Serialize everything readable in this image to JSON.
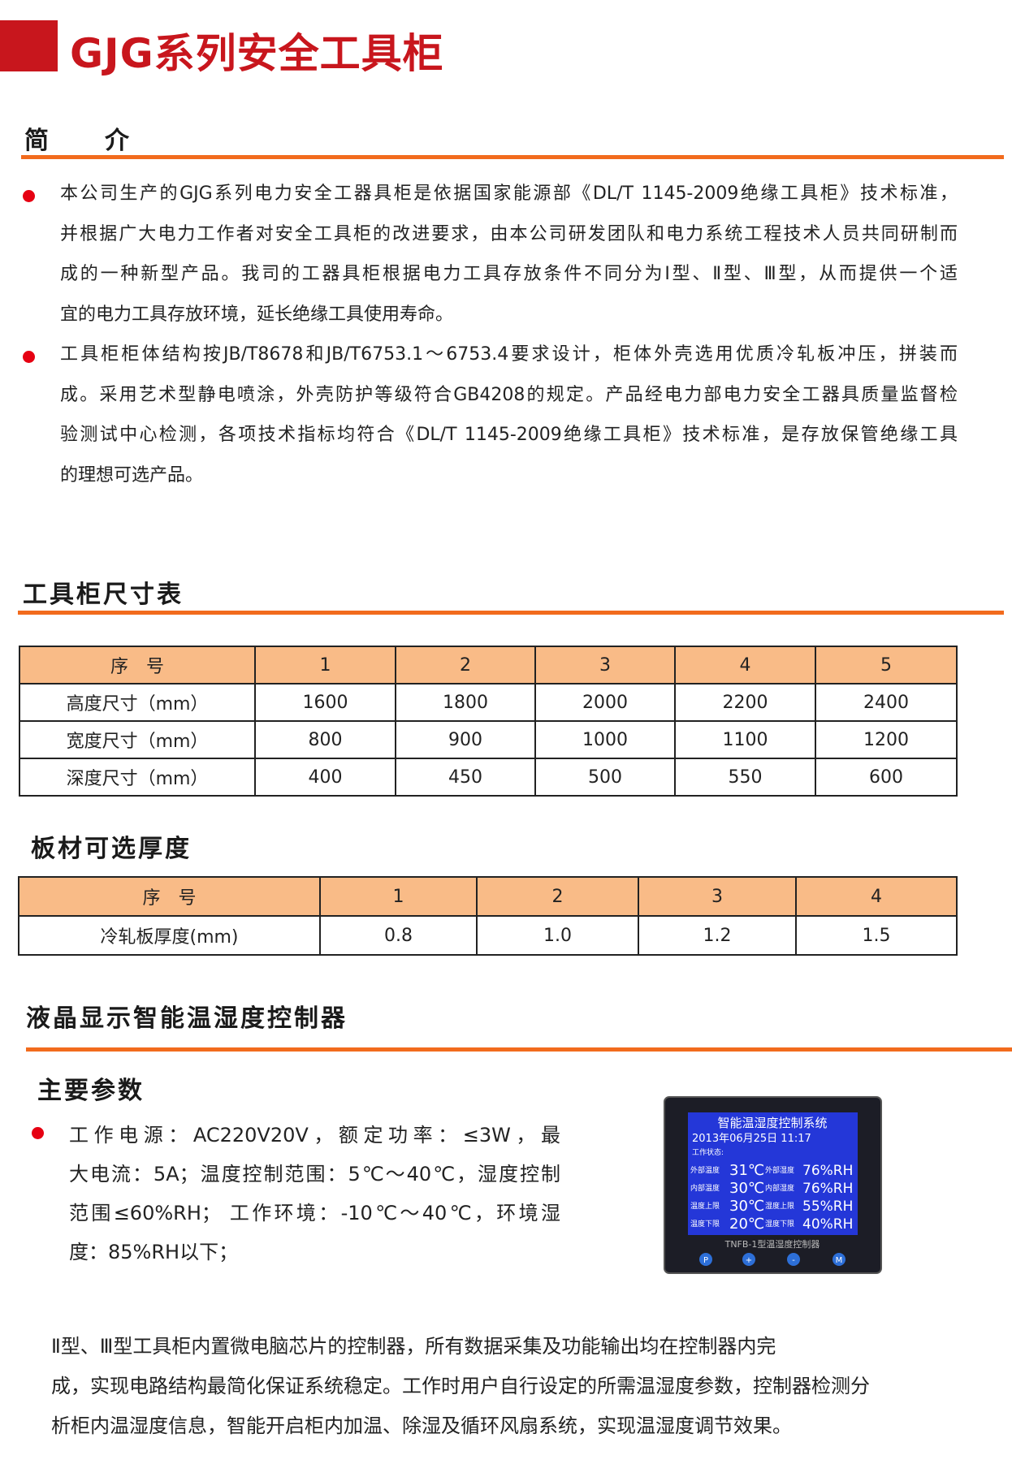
{
  "header": {
    "title": "GJG系列安全工具柜"
  },
  "intro": {
    "heading": "简　　介",
    "paragraphs": [
      [
        "本公司生产的GJG系列电力安全工器具柜是依据国家能源部《DL/T 1145-2009绝缘工具柜》技术标准，",
        "并根据广大电力工作者对安全工具柜的改进要求，由本公司研发团队和电力系统工程技术人员共同研制而",
        "成的一种新型产品。我司的工器具柜根据电力工具存放条件不同分为Ⅰ型、Ⅱ型、Ⅲ型，从而提供一个适",
        "宜的电力工具存放环境，延长绝缘工具使用寿命。"
      ],
      [
        "工具柜柜体结构按JB/T8678和JB/T6753.1～6753.4要求设计，柜体外壳选用优质冷轧板冲压，拼装而",
        "成。采用艺术型静电喷涂，外壳防护等级符合GB4208的规定。产品经电力部电力安全工器具质量监督检",
        "验测试中心检测，各项技术指标均符合《DL/T 1145-2009绝缘工具柜》技术标准，是存放保管绝缘工具",
        "的理想可选产品。"
      ]
    ]
  },
  "size_table": {
    "heading": "工具柜尺寸表",
    "header": [
      "序　号",
      "1",
      "2",
      "3",
      "4",
      "5"
    ],
    "rows": [
      [
        "高度尺寸（mm）",
        "1600",
        "1800",
        "2000",
        "2200",
        "2400"
      ],
      [
        "宽度尺寸（mm）",
        "800",
        "900",
        "1000",
        "1100",
        "1200"
      ],
      [
        "深度尺寸（mm）",
        "400",
        "450",
        "500",
        "550",
        "600"
      ]
    ]
  },
  "thickness_table": {
    "heading": "板材可选厚度",
    "header": [
      "序　号",
      "1",
      "2",
      "3",
      "4"
    ],
    "rows": [
      [
        "冷轧板厚度(mm)",
        "0.8",
        "1.0",
        "1.2",
        "1.5"
      ]
    ]
  },
  "controller": {
    "heading": "液晶显示智能温湿度控制器",
    "params_heading": "主要参数",
    "params_lines": [
      "工作电源：AC220V20V，额定功率：≤3W，最",
      "大电流：5A；温度控制范围：5℃～40℃，湿度控制",
      "范围≤60%RH；  工作环境：-10℃～40℃，环境湿",
      "度：85%RH以下；"
    ],
    "device": {
      "screen_title": "智能温湿度控制系统",
      "date": "2013年06月25日 11:17",
      "status": "工作状态:",
      "rows": [
        [
          "外部温度",
          "31℃",
          "外部湿度",
          "76%RH"
        ],
        [
          "内部温度",
          "30℃",
          "内部湿度",
          "76%RH"
        ],
        [
          "温度上限",
          "30℃",
          "湿度上限",
          "55%RH"
        ],
        [
          "温度下限",
          "20℃",
          "湿度下限",
          "40%RH"
        ]
      ],
      "model": "TNFB-1型温湿度控制器",
      "buttons": [
        "P",
        "+",
        "-",
        "M"
      ]
    },
    "description": [
      "Ⅱ型、Ⅲ型工具柜内置微电脑芯片的控制器，所有数据采集及功能输出均在控制器内完",
      "成，实现电路结构最简化保证系统稳定。工作时用户自行设定的所需温湿度参数，控制器检测分",
      "析柜内温湿度信息，智能开启柜内加温、除湿及循环风扇系统，实现温湿度调节效果。"
    ]
  }
}
